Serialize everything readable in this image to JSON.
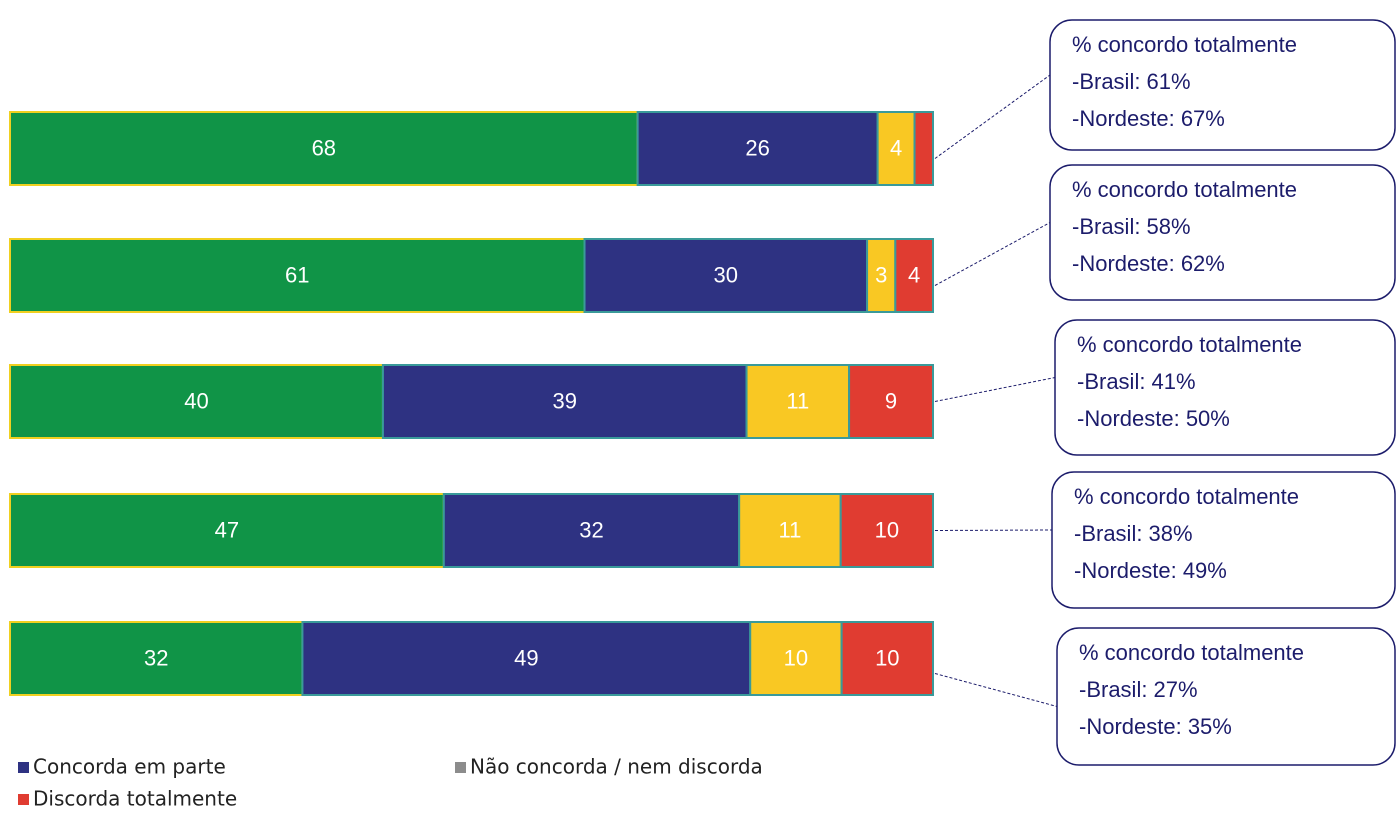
{
  "chart_data": {
    "type": "stacked_bar_horizontal_percent",
    "categories": [
      null,
      null,
      null,
      null,
      null
    ],
    "series": [
      {
        "color": "#109447",
        "values": [
          68,
          61,
          40,
          47,
          32
        ]
      },
      {
        "name": "Concorda em parte",
        "color": "#2e3282",
        "values": [
          26,
          30,
          39,
          32,
          49
        ]
      },
      {
        "name": "Não concorda / nem discorda",
        "color": "#f9c823",
        "legend_color": "#8c8c8c",
        "values": [
          4,
          3,
          11,
          11,
          10
        ]
      },
      {
        "name": "Discorda totalmente",
        "color": "#e03c31",
        "values": [
          2,
          4,
          9,
          10,
          10
        ],
        "value_labels": [
          null,
          "4",
          "9",
          "10",
          "10"
        ]
      }
    ],
    "callouts": [
      [
        "% concordo totalmente",
        "-Brasil: 61%",
        "-Nordeste: 67%"
      ],
      [
        "% concordo totalmente",
        "-Brasil: 58%",
        "-Nordeste: 62%"
      ],
      [
        "% concordo totalmente",
        "-Brasil: 41%",
        "-Nordeste: 50%"
      ],
      [
        "% concordo totalmente",
        "-Brasil: 38%",
        "-Nordeste: 49%"
      ],
      [
        "% concordo totalmente",
        "-Brasil: 27%",
        "-Nordeste: 35%"
      ]
    ]
  }
}
